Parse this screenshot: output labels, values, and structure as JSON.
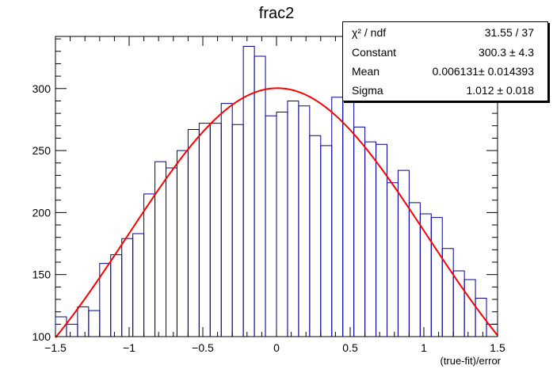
{
  "chart_data": {
    "type": "histogram",
    "title": "frac2",
    "xlabel": "(true-fit)/error",
    "ylabel": "",
    "xlim": [
      -1.5,
      1.5
    ],
    "ylim": [
      100,
      342
    ],
    "x_ticks": [
      -1.5,
      -1,
      -0.5,
      0,
      0.5,
      1,
      1.5
    ],
    "x_tick_labels": [
      "−1.5",
      "−1",
      "−0.5",
      "0",
      "0.5",
      "1",
      "1.5"
    ],
    "y_ticks": [
      100,
      150,
      200,
      250,
      300
    ],
    "y_tick_labels": [
      "100",
      "150",
      "200",
      "250",
      "300"
    ],
    "bin_edges_start": -1.5,
    "bin_width": 0.075,
    "bin_counts": [
      116,
      110,
      124,
      121,
      159,
      166,
      179,
      183,
      215,
      241,
      236,
      250,
      267,
      272,
      272,
      288,
      271,
      334,
      326,
      278,
      281,
      290,
      286,
      262,
      254,
      293,
      298,
      269,
      257,
      255,
      224,
      234,
      208,
      199,
      196,
      171,
      153,
      146,
      131,
      110
    ],
    "fit": {
      "color": "#ff0000",
      "constant": 300.3,
      "mean": 0.006131,
      "sigma": 1.012
    },
    "histogram_color": "#000099",
    "grid": false,
    "stats_box": {
      "rows": [
        {
          "key": "χ² / ndf",
          "value": "31.55 / 37"
        },
        {
          "key": "Constant",
          "value": "300.3 ± 4.3"
        },
        {
          "key": "Mean",
          "value": "0.006131± 0.014393"
        },
        {
          "key": "Sigma",
          "value": "1.012 ± 0.018"
        }
      ],
      "placement": "top-right"
    }
  }
}
